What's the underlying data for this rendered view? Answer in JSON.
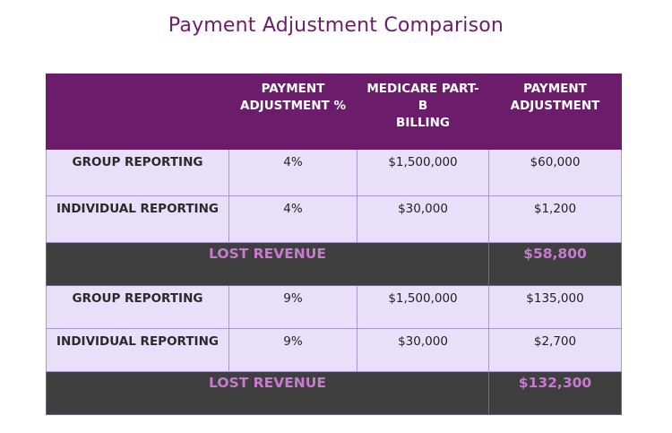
{
  "title": "Payment Adjustment Comparison",
  "table": {
    "headers": [
      "",
      "PAYMENT\nADJUSTMENT %",
      "MEDICARE PART-B\nBILLING",
      "PAYMENT\nADJUSTMENT"
    ],
    "header_lines": {
      "col2": [
        "PAYMENT",
        "ADJUSTMENT %"
      ],
      "col3": [
        "MEDICARE PART-B",
        "BILLING"
      ],
      "col4": [
        "PAYMENT",
        "ADJUSTMENT"
      ]
    },
    "sections": [
      {
        "rows": [
          {
            "label": "GROUP REPORTING",
            "pct": "4%",
            "billing": "$1,500,000",
            "adjustment": "$60,000"
          },
          {
            "label": "INDIVIDUAL REPORTING",
            "pct": "4%",
            "billing": "$30,000",
            "adjustment": "$1,200"
          }
        ],
        "lost_label": "LOST REVENUE",
        "lost_value": "$58,800"
      },
      {
        "rows": [
          {
            "label": "GROUP REPORTING",
            "pct": "9%",
            "billing": "$1,500,000",
            "adjustment": "$135,000"
          },
          {
            "label": "INDIVIDUAL REPORTING",
            "pct": "9%",
            "billing": "$30,000",
            "adjustment": "$2,700"
          }
        ],
        "lost_label": "LOST REVENUE",
        "lost_value": "$132,300"
      }
    ]
  },
  "colors": {
    "header_bg": "#6b1d6b",
    "row_bg": "#e8e0f8",
    "lost_bg": "#3f3f3f",
    "lost_text": "#c879d0",
    "title": "#6b1d6b"
  }
}
